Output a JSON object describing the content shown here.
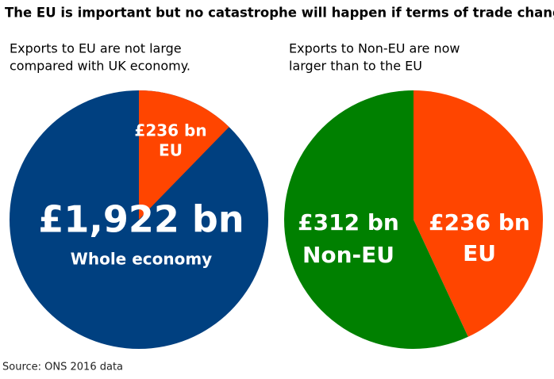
{
  "title": "The EU is important but no catastrophe will happen if terms of trade change",
  "source": "Source: ONS  2016  data",
  "chart_data": [
    {
      "type": "proportion",
      "subtitle": [
        "Exports to EU are not large",
        "compared with UK economy."
      ],
      "categories": [
        "EU",
        "Whole economy"
      ],
      "values": [
        236,
        1922
      ],
      "value_labels": [
        "£236 bn",
        "£1,922 bn"
      ],
      "colors": [
        "#ff4500",
        "#004080"
      ]
    },
    {
      "type": "pie",
      "subtitle": [
        "Exports to Non-EU are now",
        "larger than to the EU"
      ],
      "categories": [
        "EU",
        "Non-EU"
      ],
      "values": [
        236,
        312
      ],
      "value_labels": [
        "£236 bn",
        "£312 bn"
      ],
      "colors": [
        "#ff4500",
        "#008000"
      ]
    }
  ]
}
